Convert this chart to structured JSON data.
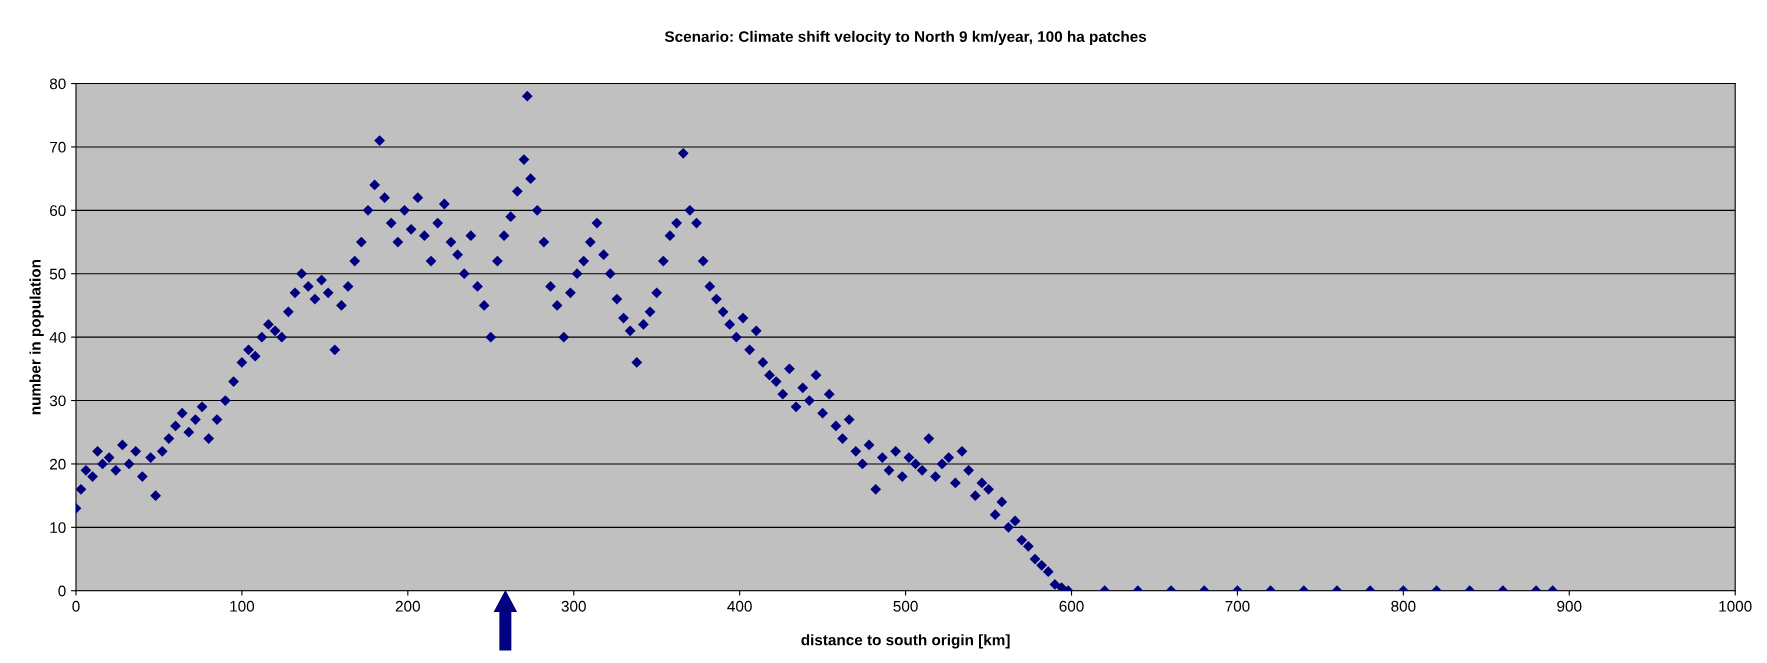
{
  "chart_data": {
    "type": "scatter",
    "title": "Scenario: Climate shift velocity to North 9 km/year, 100 ha patches",
    "xlabel": "distance to south origin [km]",
    "ylabel": "number in population",
    "x": [
      0,
      3,
      6,
      10,
      13,
      16,
      20,
      24,
      28,
      32,
      36,
      40,
      45,
      48,
      52,
      56,
      60,
      64,
      68,
      72,
      76,
      80,
      85,
      90,
      95,
      100,
      104,
      108,
      112,
      116,
      120,
      124,
      128,
      132,
      136,
      140,
      144,
      148,
      152,
      156,
      160,
      164,
      168,
      172,
      176,
      180,
      183,
      186,
      190,
      194,
      198,
      202,
      206,
      210,
      214,
      218,
      222,
      226,
      230,
      234,
      238,
      242,
      246,
      250,
      254,
      258,
      262,
      266,
      270,
      272,
      274,
      278,
      282,
      286,
      290,
      294,
      298,
      302,
      306,
      310,
      314,
      318,
      322,
      326,
      330,
      334,
      338,
      342,
      346,
      350,
      354,
      358,
      362,
      366,
      370,
      374,
      378,
      382,
      386,
      390,
      394,
      398,
      402,
      406,
      410,
      414,
      418,
      422,
      426,
      430,
      434,
      438,
      442,
      446,
      450,
      454,
      458,
      462,
      466,
      470,
      474,
      478,
      482,
      486,
      490,
      494,
      498,
      502,
      506,
      510,
      514,
      518,
      522,
      526,
      530,
      534,
      538,
      542,
      546,
      550,
      554,
      558,
      562,
      566,
      570,
      574,
      578,
      582,
      586,
      590,
      594,
      598,
      620,
      640,
      660,
      680,
      700,
      720,
      740,
      760,
      780,
      800,
      820,
      840,
      860,
      880,
      890
    ],
    "series": [
      {
        "color": "#000080",
        "values": [
          13,
          16,
          19,
          18,
          22,
          20,
          21,
          19,
          23,
          20,
          22,
          18,
          21,
          15,
          22,
          24,
          26,
          28,
          25,
          27,
          29,
          24,
          27,
          30,
          33,
          36,
          38,
          37,
          40,
          42,
          41,
          40,
          44,
          47,
          50,
          48,
          46,
          49,
          47,
          38,
          45,
          48,
          52,
          55,
          60,
          64,
          71,
          62,
          58,
          55,
          60,
          57,
          62,
          56,
          52,
          58,
          61,
          55,
          53,
          50,
          56,
          48,
          45,
          40,
          52,
          56,
          59,
          63,
          68,
          78,
          65,
          60,
          55,
          48,
          45,
          40,
          47,
          50,
          52,
          55,
          58,
          53,
          50,
          46,
          43,
          41,
          36,
          42,
          44,
          47,
          52,
          56,
          58,
          69,
          60,
          58,
          52,
          48,
          46,
          44,
          42,
          40,
          43,
          38,
          41,
          36,
          34,
          33,
          31,
          35,
          29,
          32,
          30,
          34,
          28,
          31,
          26,
          24,
          27,
          22,
          20,
          23,
          16,
          21,
          19,
          22,
          18,
          21,
          20,
          19,
          24,
          18,
          20,
          21,
          17,
          22,
          19,
          15,
          17,
          16,
          12,
          14,
          10,
          11,
          8,
          7,
          5,
          4,
          3,
          1,
          0.5,
          0,
          0,
          0,
          0,
          0,
          0,
          0,
          0,
          0,
          0,
          0,
          0,
          0,
          0,
          0,
          0
        ]
      }
    ],
    "marker": "diamond",
    "xlim": [
      0,
      1000
    ],
    "xticks": [
      0,
      100,
      200,
      300,
      400,
      500,
      600,
      700,
      800,
      900,
      1000
    ],
    "ylim": [
      0,
      80
    ],
    "yticks": [
      0,
      10,
      20,
      30,
      40,
      50,
      60,
      70,
      80
    ],
    "grid": "y"
  }
}
